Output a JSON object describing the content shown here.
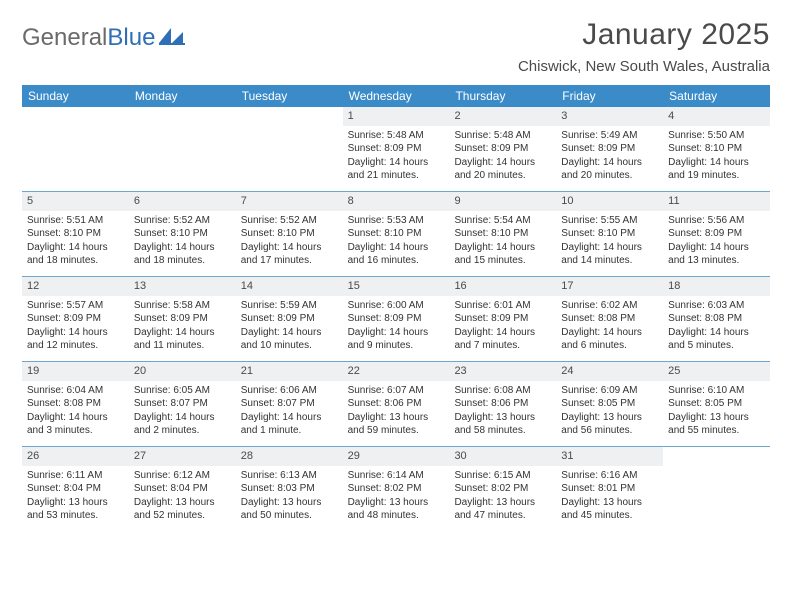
{
  "logo": {
    "word1": "General",
    "word2": "Blue"
  },
  "title": "January 2025",
  "location": "Chiswick, New South Wales, Australia",
  "colors": {
    "header_bg": "#3b8bc9",
    "header_text": "#ffffff",
    "daynum_bg": "#eef0f1",
    "row_border": "#6fa6d0",
    "logo_gray": "#6a6a6a",
    "logo_blue": "#2f6fb5"
  },
  "weekdays": [
    "Sunday",
    "Monday",
    "Tuesday",
    "Wednesday",
    "Thursday",
    "Friday",
    "Saturday"
  ],
  "weeks": [
    [
      {
        "day": "",
        "sunrise": "",
        "sunset": "",
        "daylight": ""
      },
      {
        "day": "",
        "sunrise": "",
        "sunset": "",
        "daylight": ""
      },
      {
        "day": "",
        "sunrise": "",
        "sunset": "",
        "daylight": ""
      },
      {
        "day": "1",
        "sunrise": "Sunrise: 5:48 AM",
        "sunset": "Sunset: 8:09 PM",
        "daylight": "Daylight: 14 hours and 21 minutes."
      },
      {
        "day": "2",
        "sunrise": "Sunrise: 5:48 AM",
        "sunset": "Sunset: 8:09 PM",
        "daylight": "Daylight: 14 hours and 20 minutes."
      },
      {
        "day": "3",
        "sunrise": "Sunrise: 5:49 AM",
        "sunset": "Sunset: 8:09 PM",
        "daylight": "Daylight: 14 hours and 20 minutes."
      },
      {
        "day": "4",
        "sunrise": "Sunrise: 5:50 AM",
        "sunset": "Sunset: 8:10 PM",
        "daylight": "Daylight: 14 hours and 19 minutes."
      }
    ],
    [
      {
        "day": "5",
        "sunrise": "Sunrise: 5:51 AM",
        "sunset": "Sunset: 8:10 PM",
        "daylight": "Daylight: 14 hours and 18 minutes."
      },
      {
        "day": "6",
        "sunrise": "Sunrise: 5:52 AM",
        "sunset": "Sunset: 8:10 PM",
        "daylight": "Daylight: 14 hours and 18 minutes."
      },
      {
        "day": "7",
        "sunrise": "Sunrise: 5:52 AM",
        "sunset": "Sunset: 8:10 PM",
        "daylight": "Daylight: 14 hours and 17 minutes."
      },
      {
        "day": "8",
        "sunrise": "Sunrise: 5:53 AM",
        "sunset": "Sunset: 8:10 PM",
        "daylight": "Daylight: 14 hours and 16 minutes."
      },
      {
        "day": "9",
        "sunrise": "Sunrise: 5:54 AM",
        "sunset": "Sunset: 8:10 PM",
        "daylight": "Daylight: 14 hours and 15 minutes."
      },
      {
        "day": "10",
        "sunrise": "Sunrise: 5:55 AM",
        "sunset": "Sunset: 8:10 PM",
        "daylight": "Daylight: 14 hours and 14 minutes."
      },
      {
        "day": "11",
        "sunrise": "Sunrise: 5:56 AM",
        "sunset": "Sunset: 8:09 PM",
        "daylight": "Daylight: 14 hours and 13 minutes."
      }
    ],
    [
      {
        "day": "12",
        "sunrise": "Sunrise: 5:57 AM",
        "sunset": "Sunset: 8:09 PM",
        "daylight": "Daylight: 14 hours and 12 minutes."
      },
      {
        "day": "13",
        "sunrise": "Sunrise: 5:58 AM",
        "sunset": "Sunset: 8:09 PM",
        "daylight": "Daylight: 14 hours and 11 minutes."
      },
      {
        "day": "14",
        "sunrise": "Sunrise: 5:59 AM",
        "sunset": "Sunset: 8:09 PM",
        "daylight": "Daylight: 14 hours and 10 minutes."
      },
      {
        "day": "15",
        "sunrise": "Sunrise: 6:00 AM",
        "sunset": "Sunset: 8:09 PM",
        "daylight": "Daylight: 14 hours and 9 minutes."
      },
      {
        "day": "16",
        "sunrise": "Sunrise: 6:01 AM",
        "sunset": "Sunset: 8:09 PM",
        "daylight": "Daylight: 14 hours and 7 minutes."
      },
      {
        "day": "17",
        "sunrise": "Sunrise: 6:02 AM",
        "sunset": "Sunset: 8:08 PM",
        "daylight": "Daylight: 14 hours and 6 minutes."
      },
      {
        "day": "18",
        "sunrise": "Sunrise: 6:03 AM",
        "sunset": "Sunset: 8:08 PM",
        "daylight": "Daylight: 14 hours and 5 minutes."
      }
    ],
    [
      {
        "day": "19",
        "sunrise": "Sunrise: 6:04 AM",
        "sunset": "Sunset: 8:08 PM",
        "daylight": "Daylight: 14 hours and 3 minutes."
      },
      {
        "day": "20",
        "sunrise": "Sunrise: 6:05 AM",
        "sunset": "Sunset: 8:07 PM",
        "daylight": "Daylight: 14 hours and 2 minutes."
      },
      {
        "day": "21",
        "sunrise": "Sunrise: 6:06 AM",
        "sunset": "Sunset: 8:07 PM",
        "daylight": "Daylight: 14 hours and 1 minute."
      },
      {
        "day": "22",
        "sunrise": "Sunrise: 6:07 AM",
        "sunset": "Sunset: 8:06 PM",
        "daylight": "Daylight: 13 hours and 59 minutes."
      },
      {
        "day": "23",
        "sunrise": "Sunrise: 6:08 AM",
        "sunset": "Sunset: 8:06 PM",
        "daylight": "Daylight: 13 hours and 58 minutes."
      },
      {
        "day": "24",
        "sunrise": "Sunrise: 6:09 AM",
        "sunset": "Sunset: 8:05 PM",
        "daylight": "Daylight: 13 hours and 56 minutes."
      },
      {
        "day": "25",
        "sunrise": "Sunrise: 6:10 AM",
        "sunset": "Sunset: 8:05 PM",
        "daylight": "Daylight: 13 hours and 55 minutes."
      }
    ],
    [
      {
        "day": "26",
        "sunrise": "Sunrise: 6:11 AM",
        "sunset": "Sunset: 8:04 PM",
        "daylight": "Daylight: 13 hours and 53 minutes."
      },
      {
        "day": "27",
        "sunrise": "Sunrise: 6:12 AM",
        "sunset": "Sunset: 8:04 PM",
        "daylight": "Daylight: 13 hours and 52 minutes."
      },
      {
        "day": "28",
        "sunrise": "Sunrise: 6:13 AM",
        "sunset": "Sunset: 8:03 PM",
        "daylight": "Daylight: 13 hours and 50 minutes."
      },
      {
        "day": "29",
        "sunrise": "Sunrise: 6:14 AM",
        "sunset": "Sunset: 8:02 PM",
        "daylight": "Daylight: 13 hours and 48 minutes."
      },
      {
        "day": "30",
        "sunrise": "Sunrise: 6:15 AM",
        "sunset": "Sunset: 8:02 PM",
        "daylight": "Daylight: 13 hours and 47 minutes."
      },
      {
        "day": "31",
        "sunrise": "Sunrise: 6:16 AM",
        "sunset": "Sunset: 8:01 PM",
        "daylight": "Daylight: 13 hours and 45 minutes."
      },
      {
        "day": "",
        "sunrise": "",
        "sunset": "",
        "daylight": ""
      }
    ]
  ]
}
